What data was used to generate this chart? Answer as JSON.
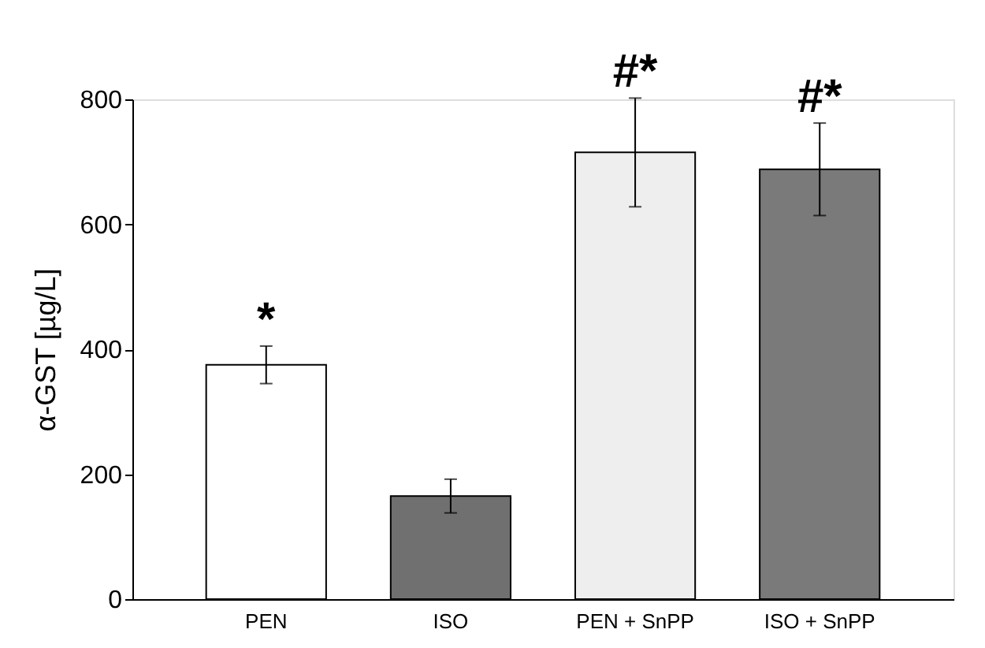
{
  "chart_data": {
    "type": "bar",
    "ylabel": "α-GST [µg/L]",
    "categories": [
      "PEN",
      "ISO",
      "PEN + SnPP",
      "ISO + SnPP"
    ],
    "values": [
      375,
      165,
      715,
      688
    ],
    "colors": [
      "#ffffff",
      "#707070",
      "#eeeeee",
      "#7a7a7a"
    ],
    "errors": [
      30,
      27,
      87,
      74
    ],
    "ylim": [
      0,
      800
    ],
    "yticks": [
      0,
      200,
      400,
      600,
      800
    ],
    "grid": false,
    "annotations": [
      {
        "text": "*",
        "x": "PEN",
        "y": 405
      },
      {
        "text": "#*",
        "x": "PEN + SnPP",
        "y": 802
      },
      {
        "text": "#*",
        "x": "ISO + SnPP",
        "y": 762
      }
    ]
  }
}
